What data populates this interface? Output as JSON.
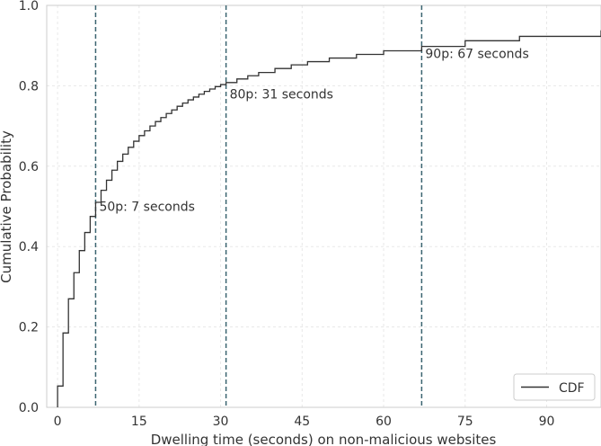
{
  "chart_data": {
    "type": "line",
    "title": "",
    "xlabel": "Dwelling time (seconds) on non-malicious websites",
    "ylabel": "Cumulative Probability",
    "xlim": [
      -2,
      100
    ],
    "ylim": [
      0,
      1.0
    ],
    "xticks": [
      0,
      15,
      30,
      45,
      60,
      75,
      90
    ],
    "yticks": [
      0.0,
      0.2,
      0.4,
      0.6,
      0.8,
      1.0
    ],
    "grid": true,
    "legend": {
      "placement": "bottom-right",
      "entries": [
        "CDF"
      ]
    },
    "series": [
      {
        "name": "CDF",
        "color": "#333333",
        "step": true,
        "x": [
          0,
          1,
          2,
          3,
          4,
          5,
          6,
          7,
          8,
          9,
          10,
          11,
          12,
          13,
          14,
          15,
          16,
          17,
          18,
          19,
          20,
          21,
          22,
          23,
          24,
          25,
          26,
          27,
          28,
          29,
          30,
          31,
          33,
          35,
          37,
          40,
          43,
          46,
          50,
          55,
          60,
          67,
          75,
          85,
          100
        ],
        "y": [
          0.053,
          0.185,
          0.27,
          0.335,
          0.39,
          0.435,
          0.475,
          0.51,
          0.54,
          0.565,
          0.59,
          0.612,
          0.63,
          0.647,
          0.662,
          0.676,
          0.688,
          0.7,
          0.711,
          0.721,
          0.731,
          0.74,
          0.749,
          0.757,
          0.765,
          0.772,
          0.779,
          0.786,
          0.792,
          0.798,
          0.803,
          0.808,
          0.817,
          0.825,
          0.833,
          0.843,
          0.852,
          0.86,
          0.869,
          0.878,
          0.887,
          0.898,
          0.912,
          0.923,
          0.938
        ]
      }
    ],
    "percentiles": [
      {
        "x": 7,
        "label": "50p: 7 seconds",
        "label_y": 0.5
      },
      {
        "x": 31,
        "label": "80p: 31 seconds",
        "label_y": 0.78
      },
      {
        "x": 67,
        "label": "90p: 67 seconds",
        "label_y": 0.88
      }
    ],
    "percentile_line_color": "#3b6470"
  }
}
